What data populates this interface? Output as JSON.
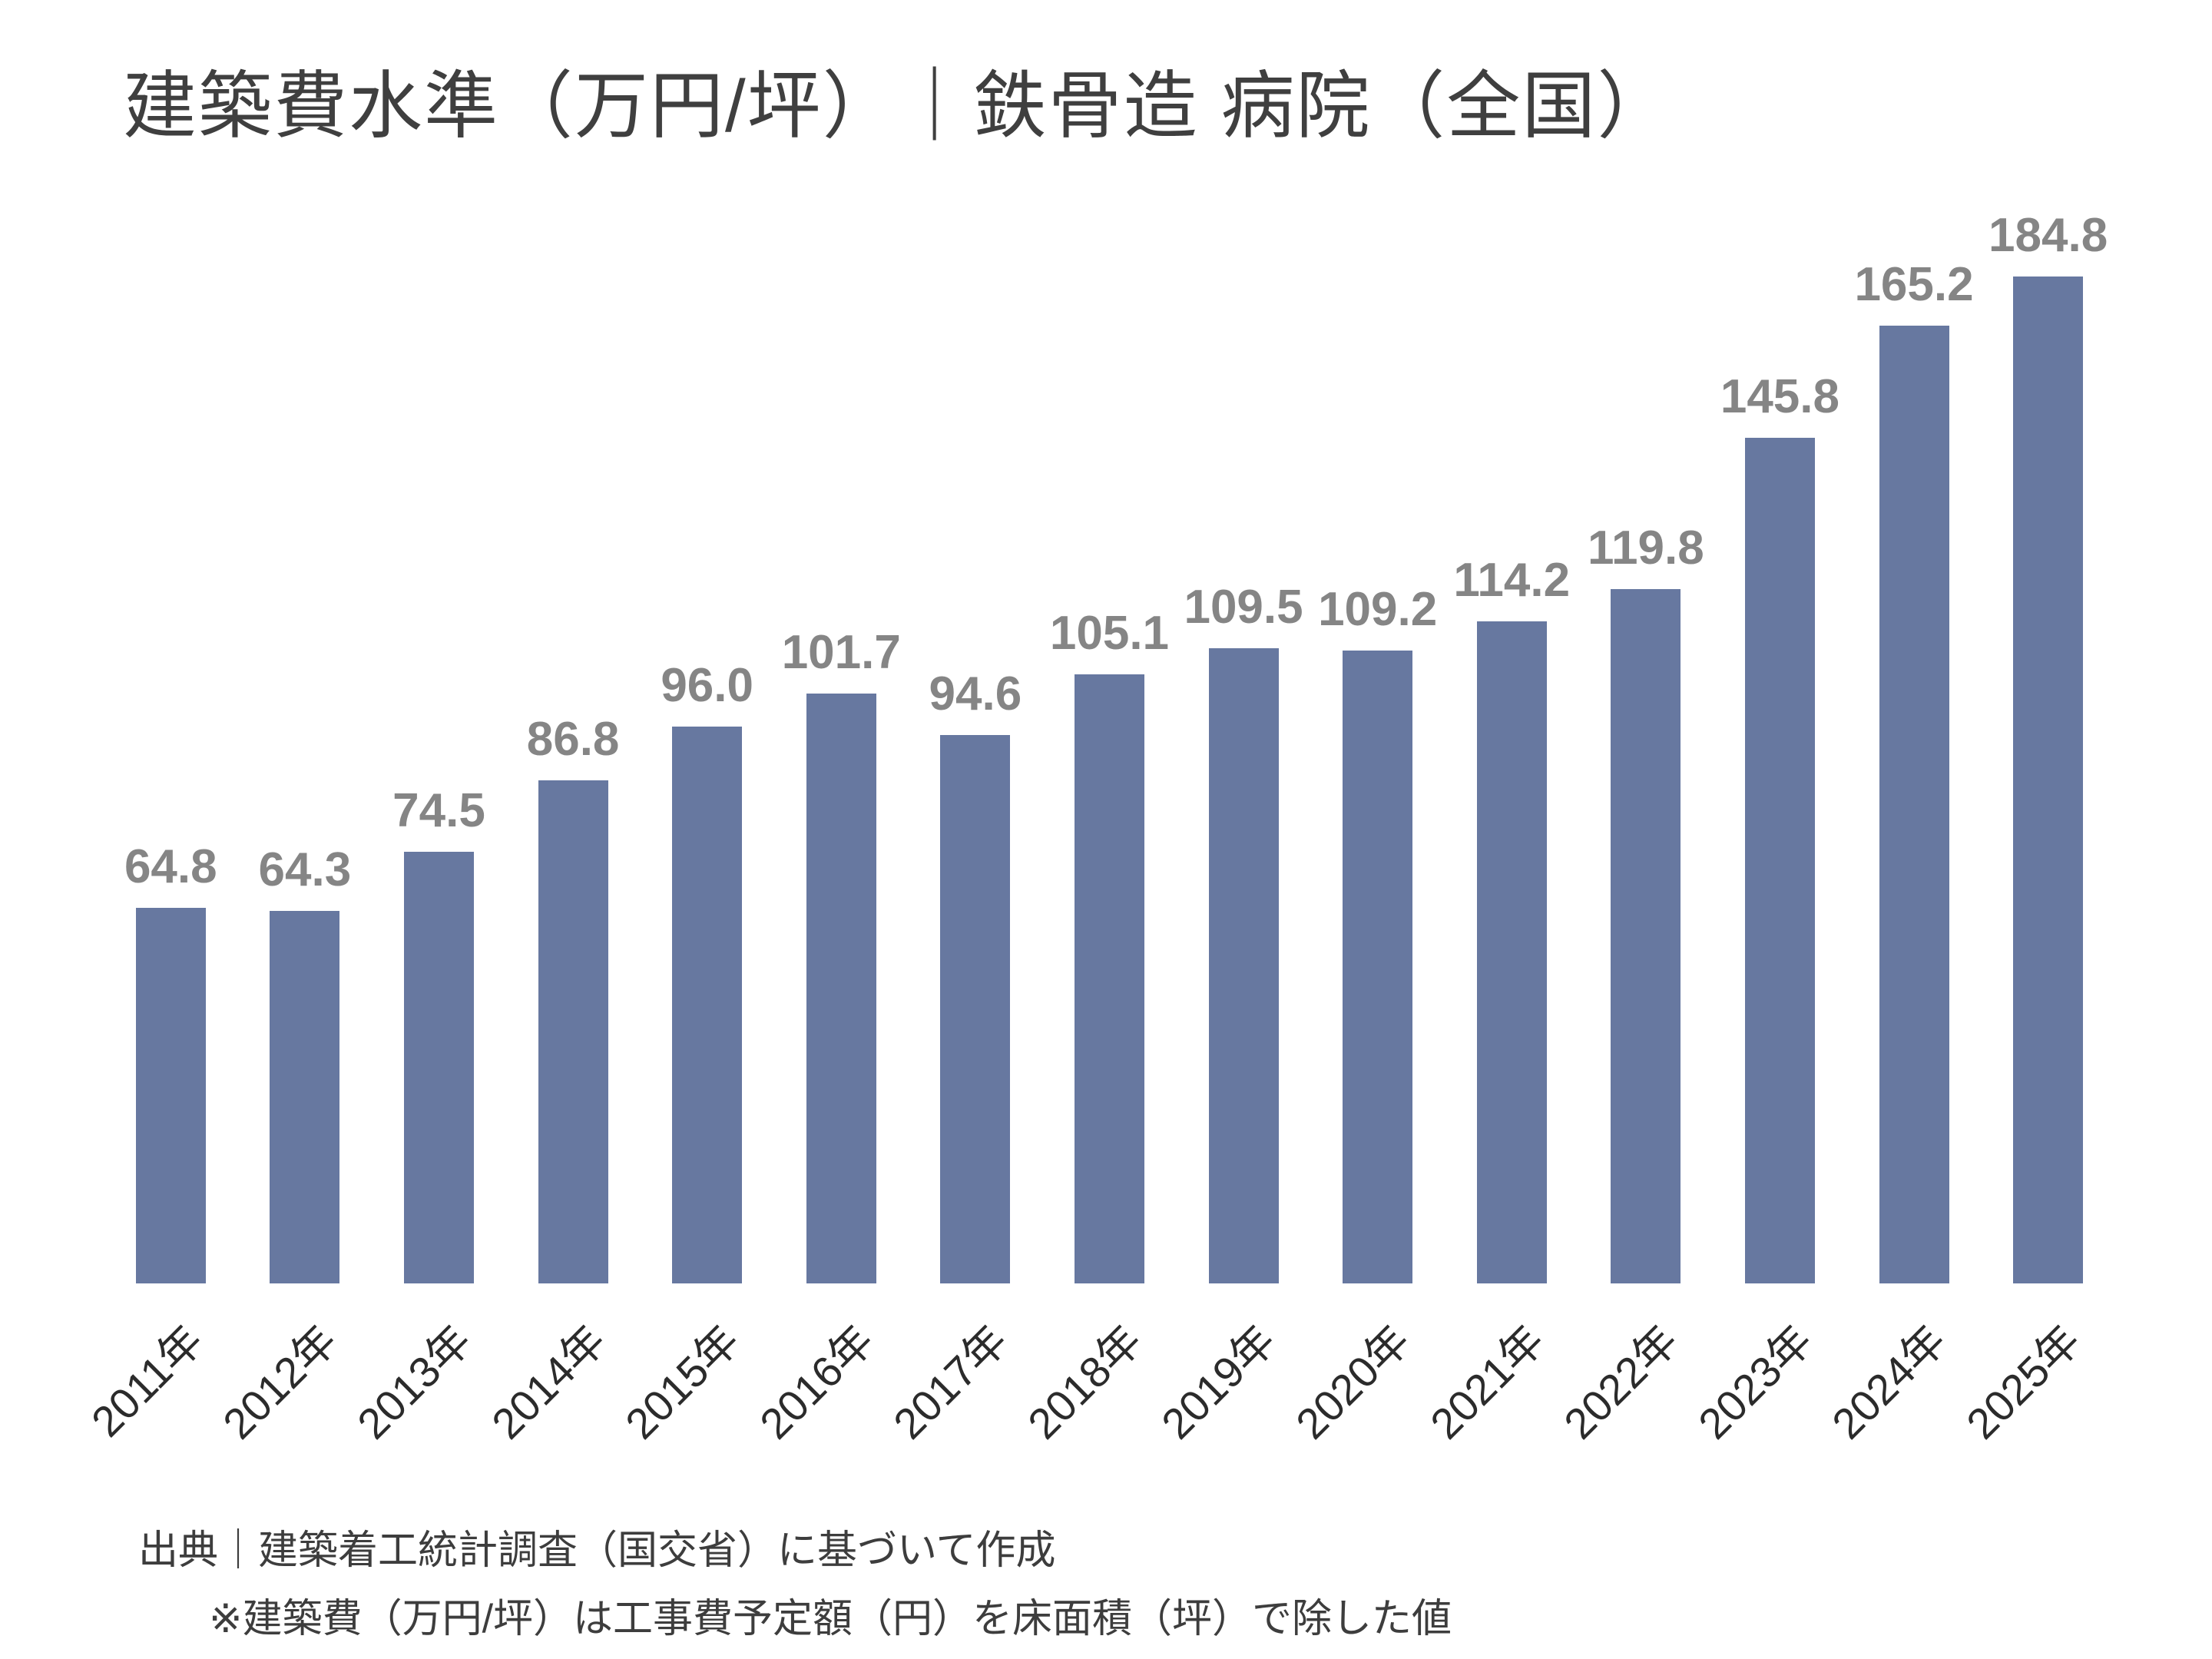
{
  "chart_data": {
    "type": "bar",
    "title": "建築費水準（万円/坪）｜鉄骨造 病院（全国）",
    "categories": [
      "2011年",
      "2012年",
      "2013年",
      "2014年",
      "2015年",
      "2016年",
      "2017年",
      "2018年",
      "2019年",
      "2020年",
      "2021年",
      "2022年",
      "2023年",
      "2024年",
      "2025年"
    ],
    "values": [
      64.8,
      64.3,
      74.5,
      86.8,
      96.0,
      101.7,
      94.6,
      105.1,
      109.5,
      109.2,
      114.2,
      119.8,
      145.8,
      165.2,
      184.8
    ],
    "value_label_decimals": 1,
    "xlabel": "",
    "ylabel": "",
    "ylim": [
      0,
      184.8
    ],
    "grid": false,
    "legend": false,
    "axis_line": false,
    "x_label_rotation_deg": -45,
    "bar_color": "#6778A0",
    "value_label_color": "#858585",
    "x_label_color": "#2b2b2b",
    "title_color": "#3f3f3f"
  },
  "footer": {
    "source": "出典｜建築着工統計調査（国交省）に基づいて作成",
    "note": "※建築費（万円/坪）は工事費予定額（円）を床面積（坪）で除した値"
  }
}
